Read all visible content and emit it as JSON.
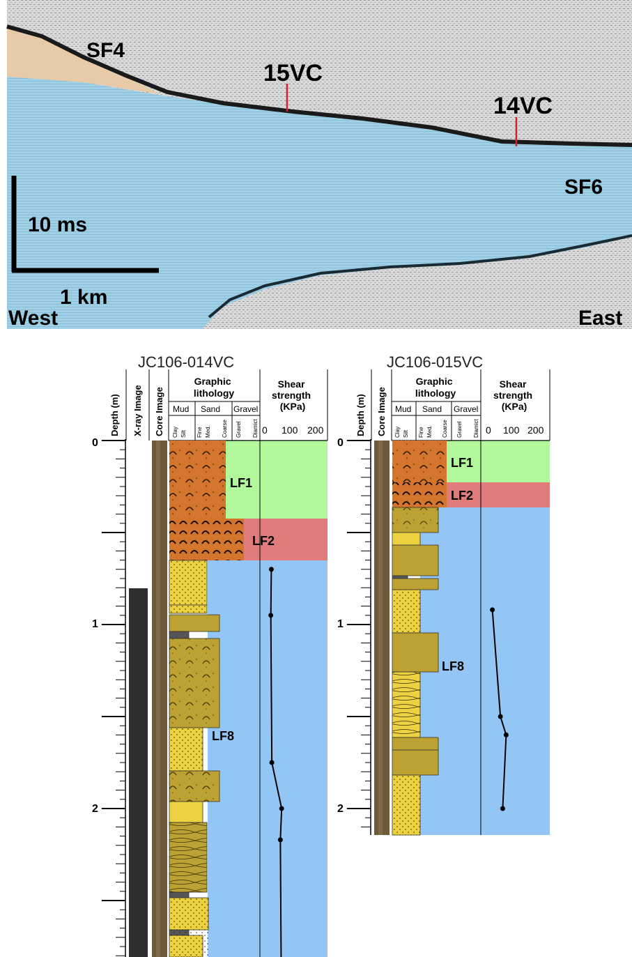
{
  "seismic": {
    "labels": {
      "sf4": "SF4",
      "vc15": "15VC",
      "vc14": "14VC",
      "sf6": "SF6",
      "time_scale": "10 ms",
      "distance_scale": "1 km",
      "west": "West",
      "east": "East"
    },
    "colors": {
      "sf4_unit": "#e8c9a8",
      "sf6_unit": "#9fd0e6",
      "core_marker": "#d3232a"
    }
  },
  "logs": {
    "headers": {
      "depth": "Depth (m)",
      "xray": "X-ray Image",
      "core_image": "Core Image",
      "graphic_lithology": [
        "Graphic",
        "lithology"
      ],
      "shear_strength": [
        "Shear",
        "strength",
        "(KPa)"
      ],
      "groups": [
        "Mud",
        "Sand",
        "Gravel"
      ],
      "subgroups": [
        "Clay",
        "Silt",
        "Fine",
        "Med.",
        "Coarse",
        "Gravel",
        "Diamict"
      ],
      "shear_ticks": [
        "0",
        "100",
        "200"
      ]
    },
    "colors": {
      "lf1": "#b3f79c",
      "lf2": "#e07c7c",
      "lf8": "#94c6f5",
      "diamict_fill": "#d4752e",
      "sand_fill": "#ecd140",
      "mudsand_fill": "#bba232"
    },
    "facies_labels": {
      "lf1": "LF1",
      "lf2": "LF2",
      "lf8": "LF8"
    },
    "depth_ticks_014": [
      "0",
      "1",
      "2"
    ],
    "depth_ticks_015": [
      "0",
      "1",
      "2"
    ],
    "core_014": {
      "title": "JC106-014VC",
      "shear_strength_kpa": [
        {
          "depth_m": 0.7,
          "kpa": 20
        },
        {
          "depth_m": 0.95,
          "kpa": 18
        },
        {
          "depth_m": 1.75,
          "kpa": 22
        },
        {
          "depth_m": 2.0,
          "kpa": 60
        },
        {
          "depth_m": 2.17,
          "kpa": 55
        },
        {
          "depth_m": 2.82,
          "kpa": 58
        }
      ]
    },
    "core_015": {
      "title": "JC106-015VC",
      "shear_strength_kpa": [
        {
          "depth_m": 0.92,
          "kpa": 20
        },
        {
          "depth_m": 1.5,
          "kpa": 55
        },
        {
          "depth_m": 1.6,
          "kpa": 80
        },
        {
          "depth_m": 2.0,
          "kpa": 65
        }
      ]
    }
  }
}
